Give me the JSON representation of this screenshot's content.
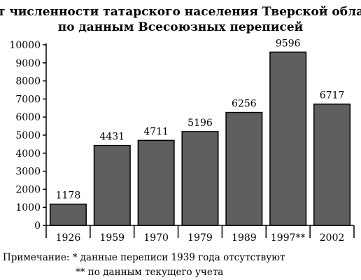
{
  "chart_data": {
    "type": "bar",
    "title_lines": [
      "Рост численности татарского населения Тверской области",
      "по данным Всесоюзных переписей"
    ],
    "categories": [
      "1926",
      "1959",
      "1970",
      "1979",
      "1989",
      "1997**",
      "2002"
    ],
    "values": [
      1178,
      4431,
      4711,
      5196,
      6256,
      9596,
      6717
    ],
    "value_labels": [
      "1178",
      "4431",
      "4711",
      "5196",
      "6256",
      "9596",
      "6717"
    ],
    "y_ticks": [
      0,
      1000,
      2000,
      3000,
      4000,
      5000,
      6000,
      7000,
      8000,
      9000,
      10000
    ],
    "y_tick_labels": [
      "0",
      "1000",
      "2000",
      "3000",
      "4000",
      "5000",
      "6000",
      "7000",
      "8000",
      "9000",
      "10000"
    ],
    "ylim": [
      0,
      10000
    ],
    "xlabel": "",
    "ylabel": "",
    "grid": false,
    "bar_color": "#5f5f5f",
    "notes": [
      "Примечание: * данные переписи 1939 года отсутствуют",
      "** по данным текущего учета"
    ]
  }
}
